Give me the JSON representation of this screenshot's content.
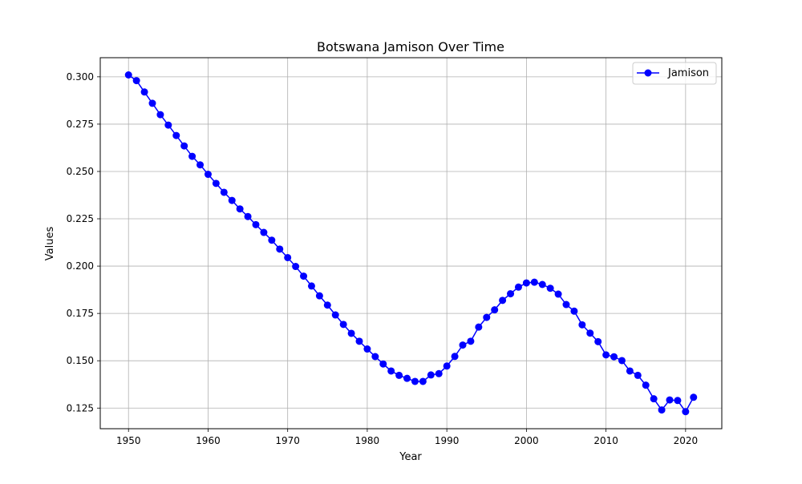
{
  "chart_data": {
    "type": "line",
    "title": "Botswana Jamison Over Time",
    "xlabel": "Year",
    "ylabel": "Values",
    "xlim": [
      1946.45,
      2024.55
    ],
    "ylim": [
      0.1141,
      0.3101
    ],
    "x_ticks": [
      1950,
      1960,
      1970,
      1980,
      1990,
      2000,
      2010,
      2020
    ],
    "y_ticks": [
      0.125,
      0.15,
      0.175,
      0.2,
      0.225,
      0.25,
      0.275,
      0.3
    ],
    "y_tick_labels": [
      "0.125",
      "0.150",
      "0.175",
      "0.200",
      "0.225",
      "0.250",
      "0.275",
      "0.300"
    ],
    "grid": true,
    "legend": "top-right",
    "series": [
      {
        "name": "Jamison",
        "color": "#0000ff",
        "marker": "circle",
        "x": [
          1950,
          1951,
          1952,
          1953,
          1954,
          1955,
          1956,
          1957,
          1958,
          1959,
          1960,
          1961,
          1962,
          1963,
          1964,
          1965,
          1966,
          1967,
          1968,
          1969,
          1970,
          1971,
          1972,
          1973,
          1974,
          1975,
          1976,
          1977,
          1978,
          1979,
          1980,
          1981,
          1982,
          1983,
          1984,
          1985,
          1986,
          1987,
          1988,
          1989,
          1990,
          1991,
          1992,
          1993,
          1994,
          1995,
          1996,
          1997,
          1998,
          1999,
          2000,
          2001,
          2002,
          2003,
          2004,
          2005,
          2006,
          2007,
          2008,
          2009,
          2010,
          2011,
          2012,
          2013,
          2014,
          2015,
          2016,
          2017,
          2018,
          2019,
          2020,
          2021
        ],
        "y": [
          0.301,
          0.298,
          0.292,
          0.286,
          0.28,
          0.2745,
          0.269,
          0.2635,
          0.258,
          0.2535,
          0.2485,
          0.2437,
          0.239,
          0.2347,
          0.2302,
          0.2262,
          0.2219,
          0.2178,
          0.2137,
          0.209,
          0.2045,
          0.1998,
          0.1947,
          0.1895,
          0.1843,
          0.1794,
          0.1742,
          0.1692,
          0.1645,
          0.1603,
          0.1562,
          0.1522,
          0.1483,
          0.1446,
          0.1423,
          0.1407,
          0.1391,
          0.1391,
          0.1425,
          0.1432,
          0.1472,
          0.1523,
          0.1583,
          0.1603,
          0.1678,
          0.1729,
          0.1769,
          0.1819,
          0.1854,
          0.1889,
          0.1911,
          0.1915,
          0.1903,
          0.1883,
          0.1852,
          0.1797,
          0.1762,
          0.169,
          0.1646,
          0.1601,
          0.1531,
          0.1521,
          0.1501,
          0.1446,
          0.1423,
          0.1371,
          0.1299,
          0.124,
          0.1293,
          0.129,
          0.1231,
          0.1307
        ]
      }
    ]
  }
}
